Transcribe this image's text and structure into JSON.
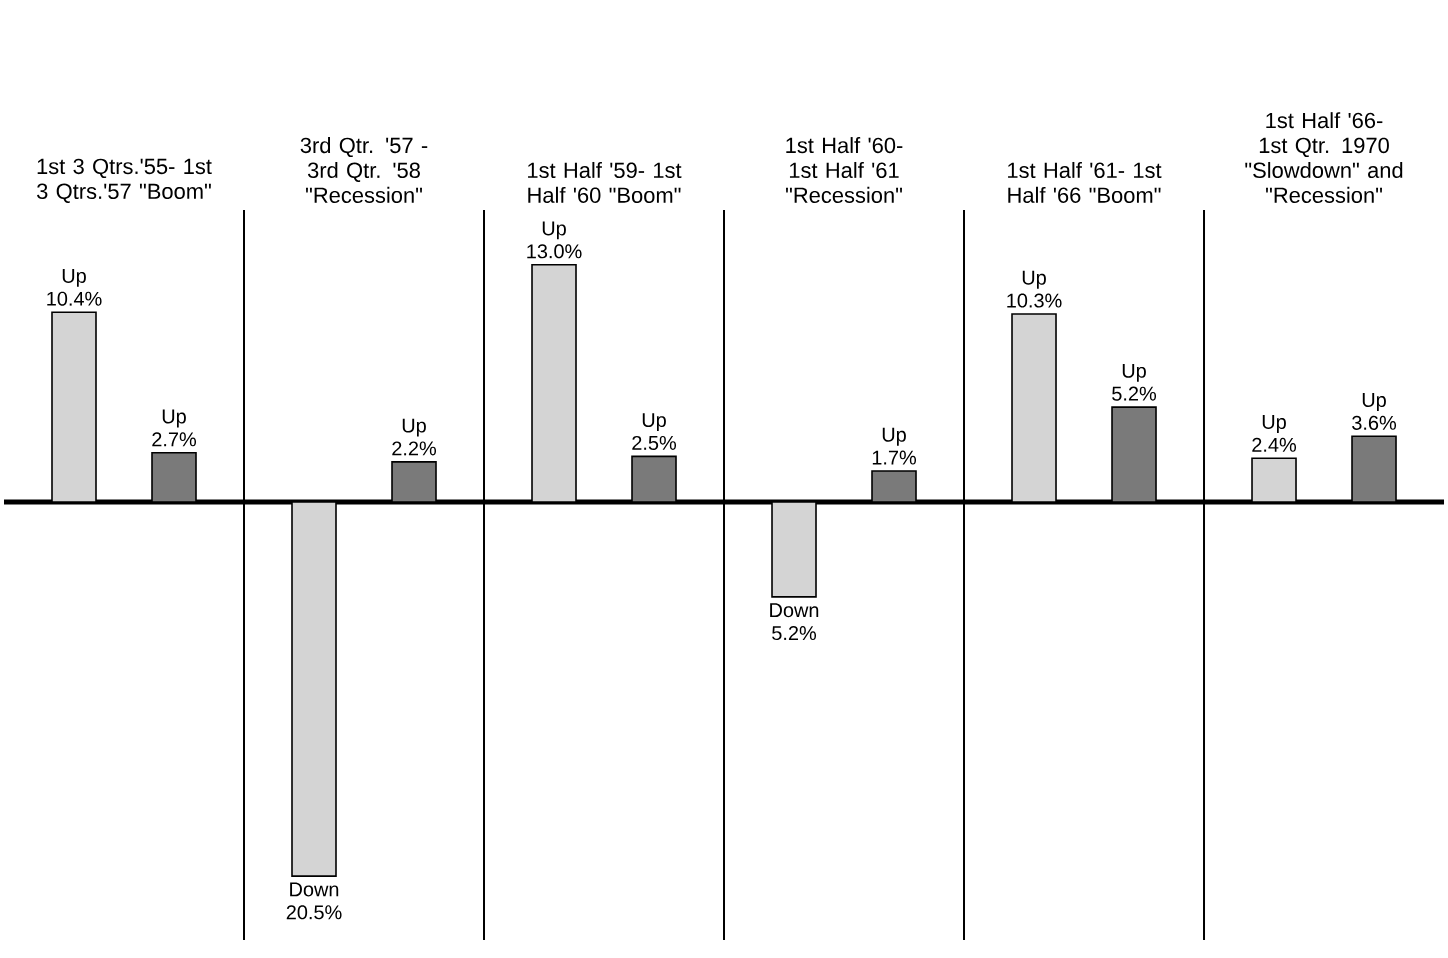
{
  "chart_data": {
    "type": "bar",
    "categories": [
      "1st 3 Qtrs.'55- 1st 3 Qtrs.'57 \"Boom\"",
      "3rd Qtr. '57 - 3rd Qtr. '58 \"Recession\"",
      "1st Half '59- 1st Half '60 \"Boom\"",
      "1st Half '60- 1st Half '61 \"Recession\"",
      "1st Half '61- 1st Half '66 \"Boom\"",
      "1st Half '66- 1st Qtr. 1970 \"Slowdown\" and \"Recession\""
    ],
    "series": [
      {
        "color": "#d4d4d4",
        "values": [
          10.4,
          -20.5,
          13.0,
          -5.2,
          10.3,
          2.4
        ],
        "value_labels": [
          "Up 10.4%",
          "Down 20.5%",
          "Up 13.0%",
          "Down 5.2%",
          "Up 10.3%",
          "Up 2.4%"
        ]
      },
      {
        "color": "#7a7a7a",
        "values": [
          2.7,
          2.2,
          2.5,
          1.7,
          5.2,
          3.6
        ],
        "value_labels": [
          "Up 2.7%",
          "Up 2.2%",
          "Up 2.5%",
          "Up 1.7%",
          "Up 5.2%",
          "Up 3.6%"
        ]
      }
    ],
    "ylim": [
      -24,
      16
    ],
    "grid": "x",
    "tick_labels": "x"
  }
}
